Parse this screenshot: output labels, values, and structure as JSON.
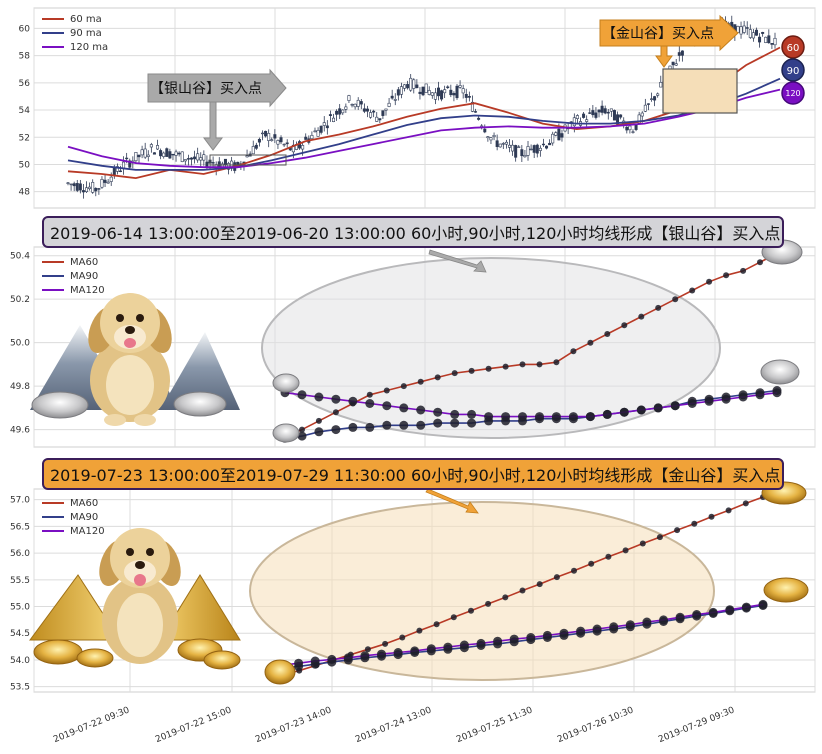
{
  "colors": {
    "ma60": "#b83a26",
    "ma90": "#323f8a",
    "ma120": "#7a0fc2",
    "silver_fill": "#e0e0e2",
    "gold_fill": "#f5deb8",
    "gold_callout": "#f0a238",
    "silver_callout": "#a9a9a9",
    "grid": "#dcdcdc",
    "plot_bg": "#ffffff"
  },
  "banner_silver": "2019-06-14 13:00:00至2019-06-20 13:00:00 60小时,90小时,120小时均线形成【银山谷】买入点",
  "banner_gold": "2019-07-23 13:00:00至2019-07-29 11:30:00 60小时,90小时,120小时均线形成【金山谷】买入点",
  "callout_silver": "【银山谷】买入点",
  "callout_gold": "【金山谷】买入点",
  "badges": {
    "b60": "60",
    "b90": "90",
    "b120": "120"
  },
  "illustrations": [
    "golden-retriever-with-silver-ingots",
    "golden-retriever-with-gold-ingots"
  ],
  "chart_data": [
    {
      "type": "line",
      "subtype": "candlestick-with-moving-averages",
      "yticks": [
        "48",
        "50",
        "52",
        "54",
        "56",
        "58",
        "60"
      ],
      "ylim": [
        46.8,
        61.5
      ],
      "legend": [
        "60 ma",
        "90 ma",
        "120 ma"
      ],
      "legend_position": "top-left",
      "grid": true,
      "series": [
        {
          "name": "60 ma",
          "values": [
            49.5,
            49.3,
            49.0,
            49.6,
            49.3,
            49.9,
            50.7,
            51.7,
            52.2,
            52.8,
            53.5,
            54.1,
            54.5,
            53.8,
            53.0,
            52.6,
            52.8,
            53.2,
            54.0,
            55.5,
            57.3,
            58.6
          ]
        },
        {
          "name": "90 ma",
          "values": [
            50.3,
            49.9,
            49.6,
            49.6,
            49.6,
            49.8,
            50.3,
            50.9,
            51.5,
            52.2,
            52.9,
            53.4,
            53.6,
            53.5,
            53.2,
            53.0,
            53.0,
            53.2,
            53.6,
            54.3,
            55.2,
            56.3
          ]
        },
        {
          "name": "120 ma",
          "values": [
            51.3,
            50.6,
            50.1,
            49.9,
            49.8,
            49.8,
            50.1,
            50.5,
            51.0,
            51.5,
            52.0,
            52.5,
            52.7,
            52.8,
            52.7,
            52.7,
            52.8,
            53.0,
            53.5,
            54.1,
            54.9,
            55.5
          ]
        },
        {
          "name": "price",
          "values": [
            48.6,
            48.2,
            50.0,
            51.2,
            50.6,
            50.2,
            49.8,
            52.2,
            51.0,
            52.8,
            54.8,
            53.4,
            56.0,
            55.2,
            55.4,
            51.8,
            50.8,
            51.6,
            53.2,
            54.0,
            52.6,
            55.8,
            59.4,
            60.2,
            59.8,
            59.0
          ]
        }
      ]
    },
    {
      "type": "line",
      "yticks": [
        "49.6",
        "49.8",
        "50.0",
        "50.2",
        "50.4"
      ],
      "ylim": [
        49.52,
        50.44
      ],
      "legend": [
        "MA60",
        "MA90",
        "MA120"
      ],
      "legend_position": "top-left",
      "grid": true,
      "series": [
        {
          "name": "MA60",
          "values": [
            49.56,
            49.6,
            49.64,
            49.68,
            49.72,
            49.76,
            49.78,
            49.8,
            49.82,
            49.84,
            49.86,
            49.87,
            49.88,
            49.89,
            49.9,
            49.9,
            49.91,
            49.96,
            50.0,
            50.04,
            50.08,
            50.12,
            50.16,
            50.2,
            50.24,
            50.28,
            50.31,
            50.33,
            50.37,
            50.41
          ]
        },
        {
          "name": "MA90",
          "values": [
            49.56,
            49.57,
            49.59,
            49.6,
            49.61,
            49.61,
            49.62,
            49.62,
            49.62,
            49.63,
            49.63,
            49.63,
            49.64,
            49.64,
            49.64,
            49.65,
            49.65,
            49.65,
            49.66,
            49.67,
            49.68,
            49.69,
            49.7,
            49.71,
            49.73,
            49.74,
            49.75,
            49.76,
            49.77,
            49.78
          ]
        },
        {
          "name": "MA120",
          "values": [
            49.77,
            49.76,
            49.75,
            49.74,
            49.73,
            49.72,
            49.71,
            49.7,
            49.69,
            49.68,
            49.67,
            49.67,
            49.66,
            49.66,
            49.66,
            49.66,
            49.66,
            49.66,
            49.66,
            49.67,
            49.68,
            49.69,
            49.7,
            49.71,
            49.72,
            49.73,
            49.74,
            49.75,
            49.76,
            49.77
          ]
        }
      ]
    },
    {
      "type": "line",
      "yticks": [
        "53.5",
        "54.0",
        "54.5",
        "55.0",
        "55.5",
        "56.0",
        "56.5",
        "57.0"
      ],
      "ylim": [
        53.4,
        57.2
      ],
      "legend": [
        "MA60",
        "MA90",
        "MA120"
      ],
      "legend_position": "top-left",
      "grid": true,
      "xticks": [
        "2019-07-22 09:30",
        "2019-07-22 15:00",
        "2019-07-23 14:00",
        "2019-07-24 13:00",
        "2019-07-25 11:30",
        "2019-07-26 10:30",
        "2019-07-29 09:30"
      ],
      "series": [
        {
          "name": "MA60",
          "values": [
            53.72,
            53.8,
            53.9,
            54.0,
            54.1,
            54.2,
            54.3,
            54.42,
            54.55,
            54.67,
            54.8,
            54.92,
            55.05,
            55.17,
            55.3,
            55.42,
            55.55,
            55.67,
            55.8,
            55.93,
            56.05,
            56.18,
            56.3,
            56.43,
            56.55,
            56.68,
            56.8,
            56.93,
            57.05
          ]
        },
        {
          "name": "MA90",
          "values": [
            53.85,
            53.88,
            53.92,
            53.96,
            54.0,
            54.04,
            54.07,
            54.1,
            54.14,
            54.17,
            54.2,
            54.23,
            54.27,
            54.3,
            54.34,
            54.38,
            54.42,
            54.46,
            54.5,
            54.54,
            54.58,
            54.62,
            54.67,
            54.72,
            54.77,
            54.82,
            54.87,
            54.92,
            54.97,
            55.02
          ]
        },
        {
          "name": "MA120",
          "values": [
            53.9,
            53.94,
            53.98,
            54.01,
            54.04,
            54.08,
            54.11,
            54.14,
            54.17,
            54.21,
            54.24,
            54.28,
            54.31,
            54.35,
            54.39,
            54.42,
            54.46,
            54.5,
            54.54,
            54.58,
            54.62,
            54.66,
            54.71,
            54.75,
            54.8,
            54.85,
            54.89,
            54.94,
            54.99,
            55.04
          ]
        }
      ]
    }
  ]
}
